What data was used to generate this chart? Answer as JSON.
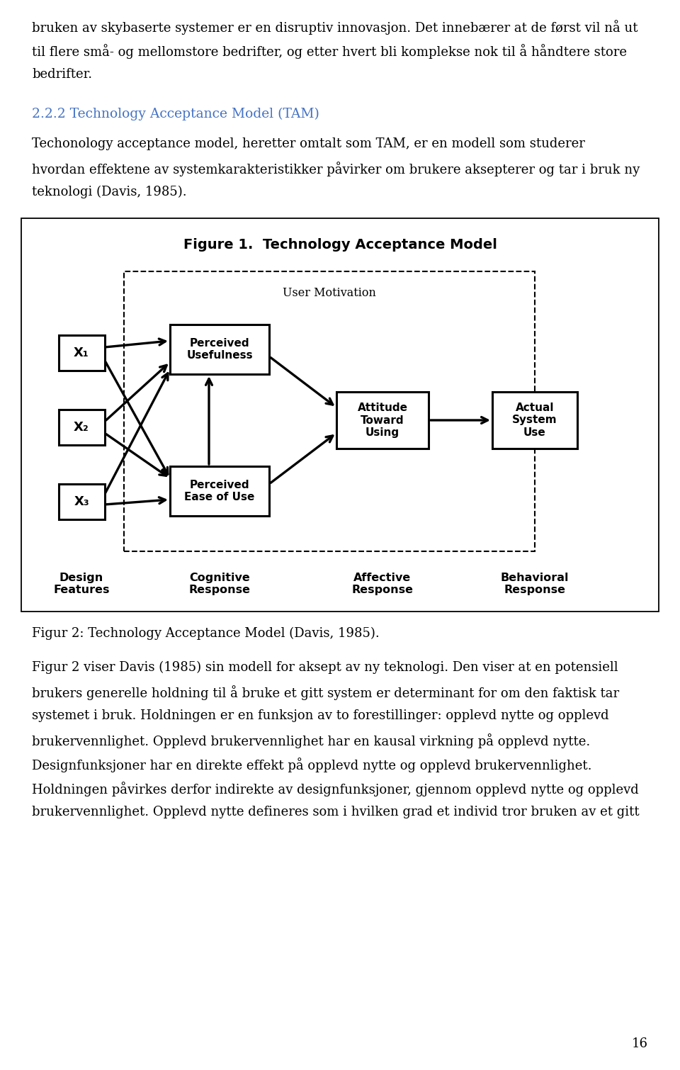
{
  "background_color": "#ffffff",
  "top_text_lines": [
    "bruken av skybaserte systemer er en disruptiv innovasjon. Det innebærer at de først vil nå ut",
    "til flere små- og mellomstore bedrifter, og etter hvert bli komplekse nok til å håndtere store",
    "bedrifter."
  ],
  "section_heading": "2.2.2 Technology Acceptance Model (TAM)",
  "section_heading_color": "#4472c4",
  "body_text_lines": [
    "Techonology acceptance model, heretter omtalt som TAM, er en modell som studerer",
    "hvordan effektene av systemkarakteristikker påvirker om brukere aksepterer og tar i bruk ny",
    "teknologi (Davis, 1985)."
  ],
  "diagram_title": "Figure 1.  Technology Acceptance Model",
  "figure_caption": "Figur 2: Technology Acceptance Model (Davis, 1985).",
  "bottom_text_lines": [
    "Figur 2 viser Davis (1985) sin modell for aksept av ny teknologi. Den viser at en potensiell",
    "brukers generelle holdning til å bruke et gitt system er determinant for om den faktisk tar",
    "systemet i bruk. Holdningen er en funksjon av to forestillinger: opplevd nytte og opplevd",
    "brukervennlighet. Opplevd brukervennlighet har en kausal virkning på opplevd nytte.",
    "Designfunksjoner har en direkte effekt på opplevd nytte og opplevd brukervennlighet.",
    "Holdningen påvirkes derfor indirekte av designfunksjoner, gjennom opplevd nytte og opplevd",
    "brukervennlighet. Opplevd nytte defineres som i hvilken grad et individ tror bruken av et gitt"
  ],
  "page_number": "16"
}
